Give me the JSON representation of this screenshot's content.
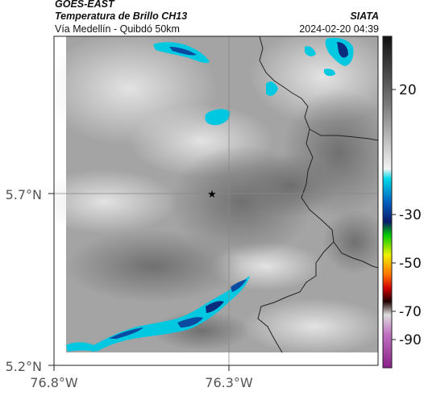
{
  "header": {
    "satellite": "GOES-EAST",
    "product": "Temperatura de Brillo CH13",
    "route": "Vía Medellín - Quibdó 50km",
    "org": "SIATA",
    "datetime": "2024-02-20 04:39"
  },
  "map": {
    "lat_labels": [
      "5.7°N",
      "5.2°N"
    ],
    "lon_labels": [
      "76.8°W",
      "76.3°W"
    ],
    "marker_icon": "star-icon"
  },
  "colorbar": {
    "ticks": [
      "20",
      "-30",
      "-50",
      "-70",
      "-90"
    ]
  }
}
